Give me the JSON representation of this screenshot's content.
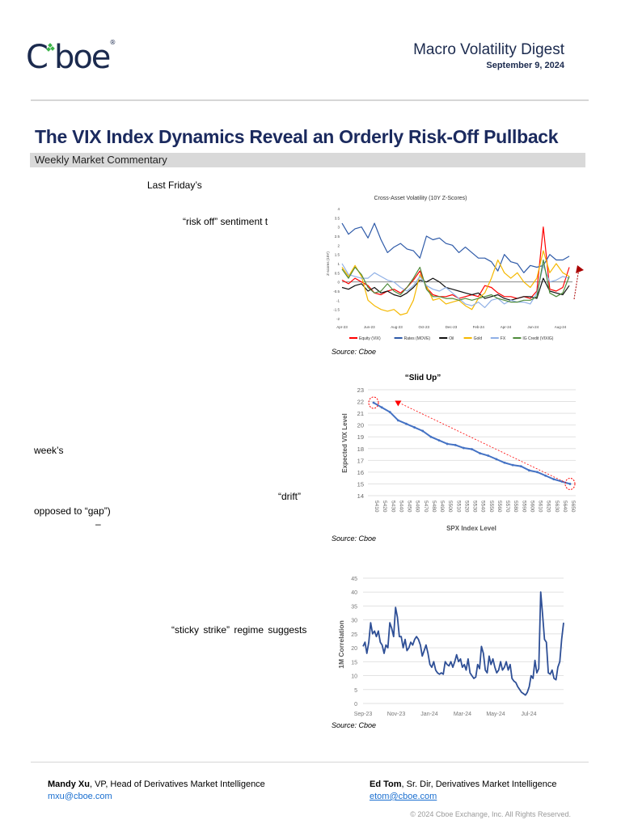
{
  "header": {
    "logo_text": "Cboe",
    "publication": "Macro Volatility Digest",
    "date": "September 9, 2024"
  },
  "article": {
    "title": "The VIX  Index Dynamics Reveal an Orderly Risk-Off Pullback",
    "section": "Weekly Market Commentary",
    "fragments": [
      "Last Friday’s",
      "“risk off” sentiment t",
      "week’s",
      "“drift”",
      "opposed to “gap”)",
      "–",
      "“sticky strike”  regime   suggests"
    ]
  },
  "colors": {
    "brand_navy": "#1b2a4e",
    "logo_green": "#3cb44a",
    "series_blue": "#2e5aa8",
    "annotation_red": "#e02020"
  },
  "chart_data": [
    {
      "type": "line",
      "title": "Cross-Asset Volatility (10Y Z-Scores)",
      "ylabel": "Z-scores (10Y)",
      "xlabel": "",
      "ylim": [
        -2,
        4
      ],
      "yticks": [
        "4",
        "3.5",
        "3",
        "2.5",
        "2",
        "1.5",
        "1",
        "0.5",
        "0",
        "-0.5",
        "-1",
        "-1.5",
        "-2"
      ],
      "xticks": [
        "Apr-23",
        "Jun-23",
        "Aug-23",
        "Oct-23",
        "Dec-23",
        "Feb-24",
        "Apr-24",
        "Jun-24",
        "Aug-24"
      ],
      "legend_position": "bottom",
      "source": "Source: Cboe",
      "series": [
        {
          "name": "Equity (VIX)",
          "color": "#ff0000",
          "values": [
            0.1,
            -0.1,
            0.2,
            0.0,
            -0.2,
            -0.6,
            -0.7,
            -0.5,
            -0.4,
            -0.6,
            -0.3,
            0.1,
            0.6,
            -0.3,
            -0.7,
            -0.8,
            -0.8,
            -0.7,
            -0.9,
            -0.8,
            -0.7,
            -0.8,
            -0.2,
            -0.3,
            -0.6,
            -0.8,
            -0.8,
            -0.9,
            -0.8,
            -0.9,
            -0.5,
            3.0,
            -0.4,
            -0.5,
            -0.3,
            0.8
          ]
        },
        {
          "name": "Rates (MOVE)",
          "color": "#2e5aa8",
          "values": [
            3.2,
            2.6,
            2.9,
            3.0,
            2.4,
            3.2,
            2.3,
            1.6,
            1.9,
            2.1,
            1.8,
            1.7,
            1.3,
            2.5,
            2.3,
            2.4,
            2.1,
            2.0,
            1.6,
            1.9,
            1.6,
            1.3,
            1.3,
            1.1,
            0.6,
            1.5,
            1.1,
            1.0,
            0.5,
            0.9,
            0.8,
            0.9,
            1.5,
            1.2,
            1.2,
            1.4
          ]
        },
        {
          "name": "Oil",
          "color": "#111111",
          "values": [
            -0.3,
            -0.4,
            -0.2,
            -0.1,
            -0.5,
            -0.3,
            -0.6,
            -0.5,
            -0.7,
            -0.8,
            -0.6,
            -0.3,
            0.1,
            0.0,
            0.2,
            0.0,
            -0.3,
            -0.4,
            -0.5,
            -0.6,
            -0.7,
            -0.6,
            -0.9,
            -0.8,
            -0.7,
            -0.9,
            -1.0,
            -0.9,
            -0.8,
            -0.8,
            -0.9,
            0.2,
            -0.5,
            -0.6,
            -0.7,
            -0.2
          ]
        },
        {
          "name": "Gold",
          "color": "#f5b800",
          "values": [
            0.8,
            0.3,
            0.9,
            0.3,
            -1.0,
            -1.3,
            -1.5,
            -1.6,
            -1.5,
            -1.8,
            -1.7,
            -1.0,
            0.4,
            -0.2,
            -1.0,
            -0.9,
            -1.2,
            -1.1,
            -1.0,
            -1.3,
            -1.5,
            -0.9,
            -0.6,
            0.2,
            1.2,
            0.5,
            0.2,
            0.5,
            0.0,
            -0.3,
            0.2,
            1.7,
            0.5,
            1.0,
            0.5,
            0.3
          ]
        },
        {
          "name": "FX",
          "color": "#8fb0e6",
          "values": [
            1.0,
            0.4,
            0.3,
            0.2,
            0.2,
            0.5,
            0.3,
            0.1,
            0.0,
            -0.3,
            -0.5,
            -0.2,
            0.3,
            -0.2,
            -0.4,
            -0.5,
            -0.3,
            -0.6,
            -0.9,
            -1.2,
            -1.3,
            -1.1,
            -1.4,
            -1.0,
            -0.9,
            -1.2,
            -1.0,
            -1.1,
            -1.1,
            -1.2,
            -0.6,
            0.9,
            0.0,
            0.1,
            0.3,
            0.2
          ]
        },
        {
          "name": "IG Credit (VIXIG)",
          "color": "#4e8a3a",
          "values": [
            0.7,
            0.2,
            0.8,
            0.4,
            -0.3,
            -0.6,
            -0.5,
            -0.1,
            -0.5,
            -0.7,
            -0.3,
            0.2,
            0.8,
            -0.4,
            -0.8,
            -0.8,
            -0.9,
            -0.9,
            -1.0,
            -0.9,
            -1.0,
            -0.9,
            -0.8,
            -0.7,
            -0.9,
            -1.0,
            -1.1,
            -1.1,
            -1.0,
            -1.0,
            -0.8,
            1.2,
            -0.6,
            -0.8,
            -0.6,
            0.3
          ]
        }
      ]
    },
    {
      "type": "line",
      "title": "“Slid Up”",
      "xlabel": "SPX Index Level",
      "ylabel": "Expected VIX Level",
      "ylim": [
        14,
        23
      ],
      "yticks": [
        14,
        15,
        16,
        17,
        18,
        19,
        20,
        21,
        22,
        23
      ],
      "grid": true,
      "source": "Source: Cboe",
      "categories": [
        "5410",
        "5420",
        "5430",
        "5440",
        "5450",
        "5460",
        "5470",
        "5480",
        "5490",
        "5500",
        "5510",
        "5520",
        "5530",
        "5540",
        "5550",
        "5560",
        "5570",
        "5580",
        "5590",
        "5600",
        "5610",
        "5620",
        "5630",
        "5640",
        "5650"
      ],
      "values": [
        21.9,
        21.5,
        21.1,
        20.4,
        20.1,
        19.8,
        19.5,
        19.0,
        18.7,
        18.4,
        18.3,
        18.05,
        17.95,
        17.6,
        17.4,
        17.1,
        16.8,
        16.6,
        16.5,
        16.15,
        16.0,
        15.7,
        15.4,
        15.2,
        15.0
      ],
      "series_color": "#4472c4",
      "annotation": {
        "type": "dashed-arrow",
        "color": "#ff0000",
        "from": [
          "5650",
          15.2
        ],
        "to": [
          "5440",
          21.8
        ],
        "circled_points": [
          "5410",
          "5650"
        ]
      }
    },
    {
      "type": "line",
      "title": "",
      "xlabel": "",
      "ylabel": "1M Correlation",
      "ylim": [
        0,
        45
      ],
      "yticks": [
        0,
        5,
        10,
        15,
        20,
        25,
        30,
        35,
        40,
        45
      ],
      "xticks": [
        "Sep-23",
        "Nov-23",
        "Jan-24",
        "Mar-24",
        "May-24",
        "Jul-24"
      ],
      "grid": true,
      "source": "Source: Cboe",
      "series_color": "#2e4f96",
      "values": [
        20.5,
        22,
        18,
        22,
        29,
        25,
        26,
        24,
        26,
        22,
        21,
        18,
        21,
        20,
        29,
        27,
        24,
        34.5,
        31,
        24,
        24,
        20,
        23,
        19,
        20,
        22,
        21,
        23,
        24,
        23,
        21,
        17,
        19,
        21,
        18,
        14,
        13,
        15,
        12,
        11,
        10.5,
        11,
        10.5,
        15,
        14,
        13.5,
        15,
        13,
        15,
        17.5,
        15,
        16,
        13,
        14,
        12,
        16,
        11,
        10,
        9,
        9.5,
        14,
        12.5,
        20.5,
        18,
        12,
        11,
        17,
        14,
        16,
        13,
        11,
        12,
        15,
        12,
        13,
        15,
        12,
        14,
        9,
        8,
        7.5,
        6,
        5,
        4,
        3.5,
        3,
        4,
        6,
        10,
        9,
        15.5,
        11,
        12.5,
        40,
        32,
        23,
        22,
        11,
        10.5,
        12,
        9,
        8.5,
        13,
        15,
        23,
        29
      ]
    }
  ],
  "footer": {
    "author1_name": "Mandy Xu",
    "author1_title": ", VP, Head of Derivatives Market Intelligence",
    "author1_email": "mxu@cboe.com",
    "author2_name": "Ed Tom",
    "author2_title": ", Sr. Dir, Derivatives Market Intelligence",
    "author2_email": "etom@cboe.com",
    "copyright": "© 2024 Cboe Exchange, Inc. All Rights Reserved."
  }
}
